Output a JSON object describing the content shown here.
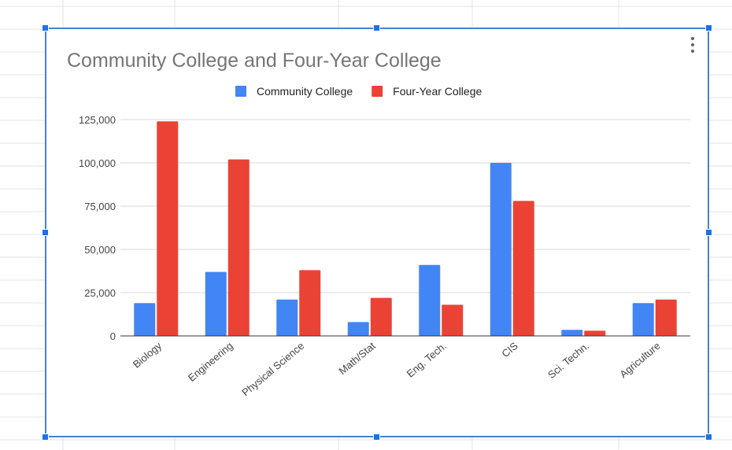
{
  "chart_data": {
    "type": "bar",
    "title": "Community College and Four-Year College",
    "categories": [
      "Biology",
      "Engineering",
      "Physical Science",
      "Math/Stat",
      "Eng. Tech.",
      "CIS",
      "Sci. Techn.",
      "Agriculture"
    ],
    "series": [
      {
        "name": "Community College",
        "color": "#4285f4",
        "values": [
          19000,
          37000,
          21000,
          8000,
          41000,
          100000,
          3500,
          19000
        ]
      },
      {
        "name": "Four-Year College",
        "color": "#ea4335",
        "values": [
          124000,
          102000,
          38000,
          22000,
          18000,
          78000,
          3000,
          21000
        ]
      }
    ],
    "y_ticks": [
      "0",
      "25,000",
      "50,000",
      "75,000",
      "100,000",
      "125,000"
    ],
    "ylim": [
      0,
      125000
    ],
    "grid": true,
    "legend_position": "top"
  },
  "colors": {
    "gridline": "#d9d9d9",
    "axis": "#333333",
    "selection": "#1a73e8"
  },
  "icons": {
    "menu": "more-vert-icon"
  }
}
